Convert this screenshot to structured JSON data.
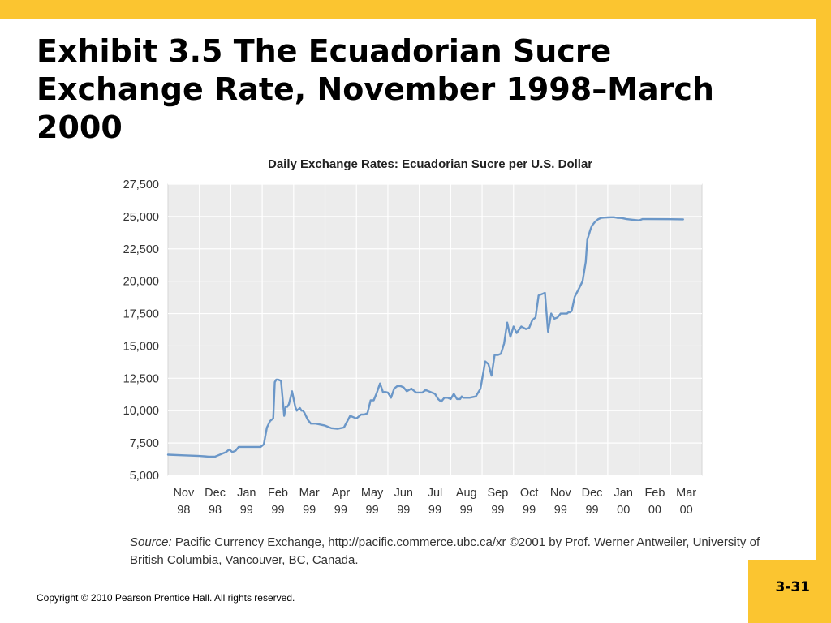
{
  "slide": {
    "title": "Exhibit 3.5  The Ecuadorian Sucre\nExchange Rate, November 1998–March\n2000",
    "page_number": "3-31",
    "copyright": "Copyright © 2010 Pearson Prentice Hall. All rights reserved.",
    "source_label": "Source:",
    "source_text": " Pacific Currency Exchange, http://pacific.commerce.ubc.ca/xr ©2001 by Prof. Werner Antweiler, University of British Columbia, Vancouver, BC, Canada.",
    "colors": {
      "accent": "#fbc530",
      "line": "#6b97c8",
      "plot_bg": "#ececec",
      "grid": "#ffffff"
    }
  },
  "chart_data": {
    "type": "line",
    "title": "Daily Exchange Rates: Ecuadorian Sucre per U.S. Dollar",
    "xlabel": "",
    "ylabel": "",
    "ylim": [
      5000,
      27500
    ],
    "yticks": [
      "27,500",
      "25,000",
      "22,500",
      "20,000",
      "17,500",
      "15,000",
      "12,500",
      "10,000",
      "7,500",
      "5,000"
    ],
    "yticks_values": [
      27500,
      25000,
      22500,
      20000,
      17500,
      15000,
      12500,
      10000,
      7500,
      5000
    ],
    "categories": [
      [
        "Nov",
        "98"
      ],
      [
        "Dec",
        "98"
      ],
      [
        "Jan",
        "99"
      ],
      [
        "Feb",
        "99"
      ],
      [
        "Mar",
        "99"
      ],
      [
        "Apr",
        "99"
      ],
      [
        "May",
        "99"
      ],
      [
        "Jun",
        "99"
      ],
      [
        "Jul",
        "99"
      ],
      [
        "Aug",
        "99"
      ],
      [
        "Sep",
        "99"
      ],
      [
        "Oct",
        "99"
      ],
      [
        "Nov",
        "99"
      ],
      [
        "Dec",
        "99"
      ],
      [
        "Jan",
        "00"
      ],
      [
        "Feb",
        "00"
      ],
      [
        "Mar",
        "00"
      ]
    ],
    "grid": true,
    "series": [
      {
        "x": [
          0,
          0.5,
          1.0,
          1.3,
          1.5,
          1.6,
          1.75,
          1.85,
          1.95,
          2.05,
          2.15,
          2.25,
          2.35,
          2.5,
          2.7,
          2.95,
          3.05,
          3.15,
          3.25,
          3.35,
          3.4,
          3.45,
          3.5,
          3.6,
          3.7,
          3.75,
          3.8,
          3.85,
          3.9,
          3.95,
          4.05,
          4.1,
          4.2,
          4.25,
          4.3,
          4.35,
          4.45,
          4.55,
          4.6,
          4.65,
          4.7,
          4.8,
          4.9,
          5.0,
          5.2,
          5.4,
          5.6,
          5.8,
          6.0,
          6.15,
          6.25,
          6.35,
          6.45,
          6.55,
          6.65,
          6.75,
          6.85,
          6.9,
          7.0,
          7.1,
          7.2,
          7.3,
          7.4,
          7.5,
          7.6,
          7.75,
          7.9,
          8.0,
          8.1,
          8.2,
          8.3,
          8.5,
          8.6,
          8.7,
          8.8,
          8.9,
          9.0,
          9.1,
          9.2,
          9.3,
          9.35,
          9.4,
          9.5,
          9.6,
          9.8,
          9.95,
          10.1,
          10.2,
          10.3,
          10.4,
          10.5,
          10.6,
          10.7,
          10.8,
          10.9,
          11.0,
          11.1,
          11.25,
          11.4,
          11.5,
          11.6,
          11.7,
          11.8,
          12.0,
          12.1,
          12.2,
          12.3,
          12.4,
          12.5,
          12.6,
          12.7,
          12.75,
          12.8,
          12.85,
          12.95,
          13.1,
          13.2,
          13.3,
          13.35,
          13.45,
          13.5,
          13.6,
          13.7,
          13.8,
          13.9,
          14.0,
          14.1,
          14.2,
          14.3,
          14.45,
          14.6,
          14.8,
          15.0,
          15.1,
          15.2,
          15.3,
          16.0,
          16.4
        ],
        "values": [
          6600,
          6550,
          6500,
          6450,
          6450,
          6550,
          6700,
          6800,
          7000,
          6800,
          6900,
          7200,
          7200,
          7200,
          7200,
          7200,
          7400,
          8700,
          9200,
          9400,
          12200,
          12400,
          12400,
          12300,
          9600,
          10300,
          10300,
          10500,
          11000,
          11500,
          10300,
          10000,
          10200,
          10000,
          10000,
          9800,
          9300,
          9000,
          9000,
          9000,
          9000,
          8950,
          8900,
          8850,
          8650,
          8600,
          8700,
          9600,
          9400,
          9700,
          9700,
          9800,
          10800,
          10800,
          11400,
          12100,
          11400,
          11450,
          11400,
          11000,
          11700,
          11900,
          11900,
          11800,
          11500,
          11700,
          11400,
          11400,
          11400,
          11600,
          11500,
          11300,
          10900,
          10700,
          11000,
          11000,
          10900,
          11300,
          10900,
          10900,
          11100,
          11000,
          11000,
          11000,
          11100,
          11700,
          13800,
          13600,
          12700,
          14300,
          14300,
          14400,
          15200,
          16800,
          15700,
          16500,
          16000,
          16500,
          16300,
          16400,
          17000,
          17200,
          18900,
          19100,
          16100,
          17500,
          17100,
          17200,
          17500,
          17500,
          17500,
          17600,
          17600,
          17700,
          18800,
          19500,
          20000,
          21500,
          23200,
          24000,
          24300,
          24600,
          24800,
          24900,
          24920,
          24930,
          24940,
          24940,
          24900,
          24880,
          24800,
          24750,
          24700,
          24800,
          24800,
          24800,
          24790,
          24780
        ]
      }
    ]
  }
}
